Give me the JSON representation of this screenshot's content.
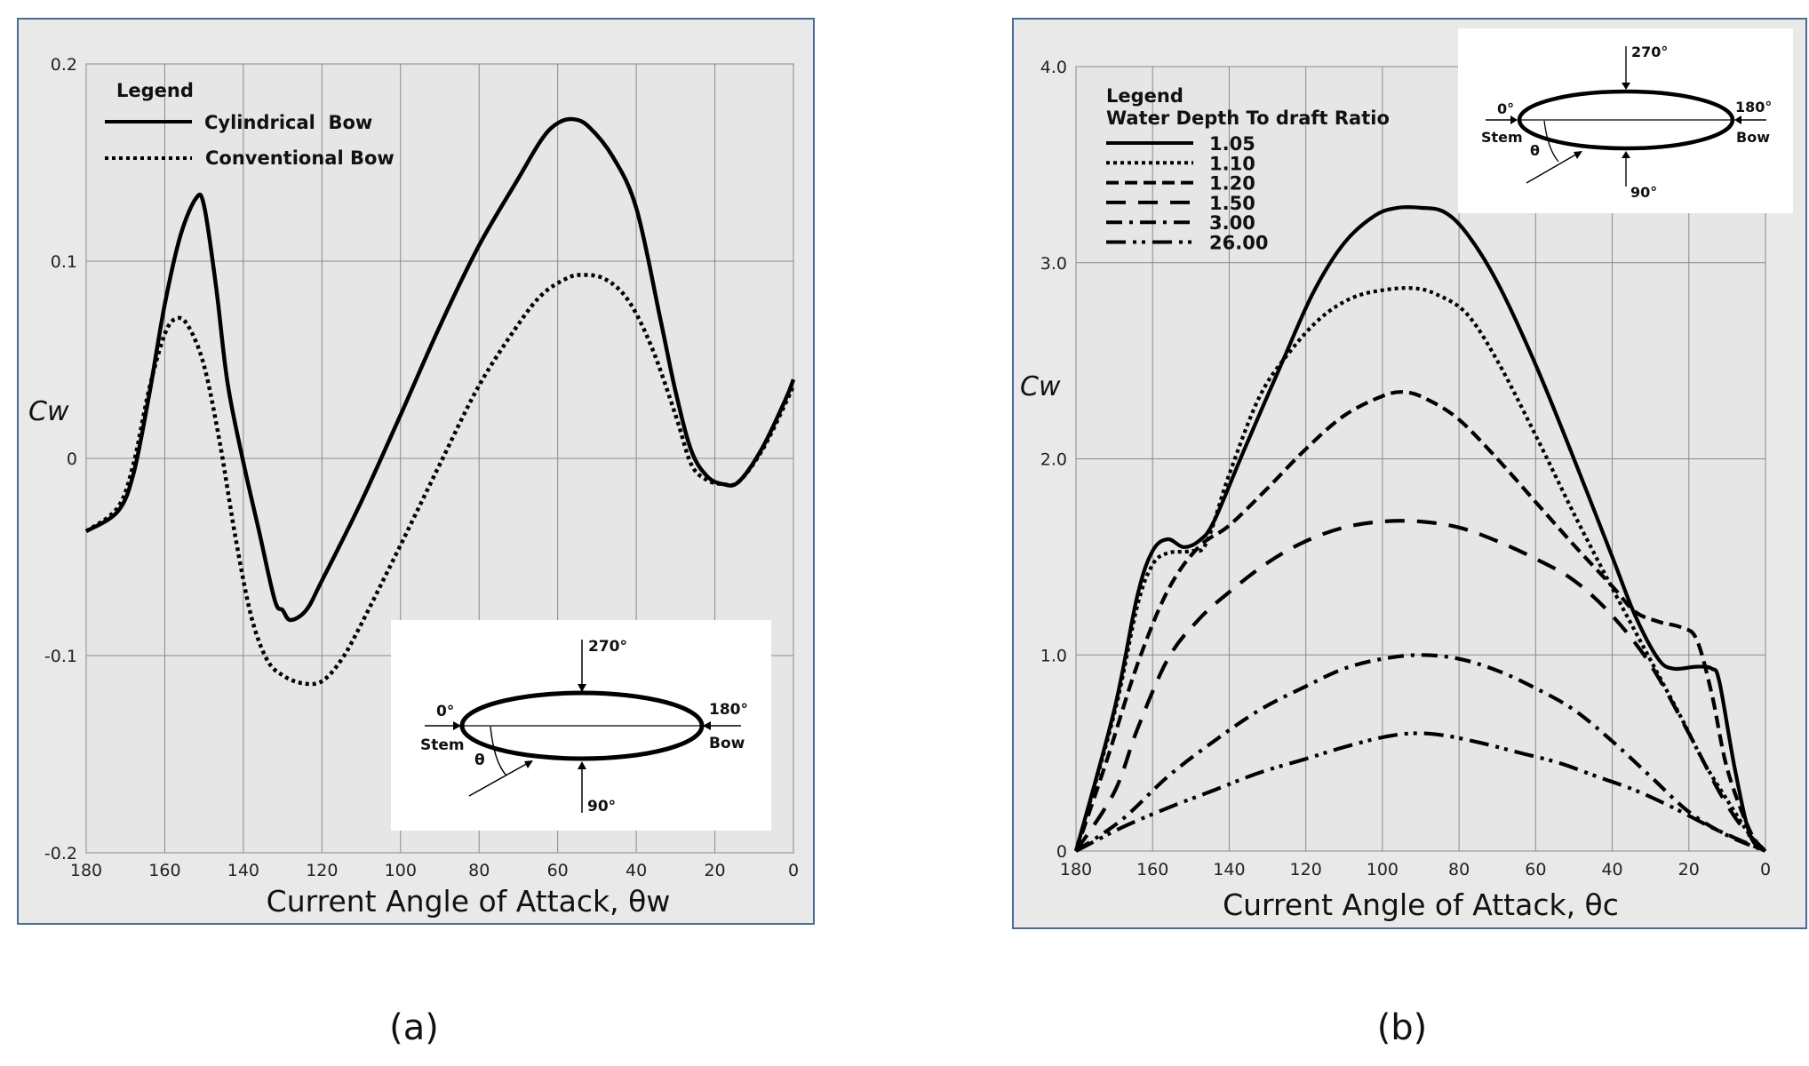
{
  "chart_data": [
    {
      "type": "line",
      "panel_label": "(a)",
      "title": "",
      "xlabel": "Current Angle of Attack, θw",
      "ylabel": "Cw",
      "xlim": [
        180,
        0
      ],
      "ylim": [
        -0.2,
        0.2
      ],
      "x_ticks": [
        "180",
        "160",
        "140",
        "120",
        "100",
        "80",
        "60",
        "40",
        "20",
        "0"
      ],
      "y_ticks": [
        "0.2",
        "0.1",
        "0",
        "-0.1",
        "-0.2"
      ],
      "legend_title": "Legend",
      "legend_position": "top-left",
      "series": [
        {
          "name": "Cylindrical  Bow",
          "style": "solid",
          "points": [
            [
              180,
              -0.037
            ],
            [
              172,
              -0.027
            ],
            [
              168,
              -0.008
            ],
            [
              164,
              0.032
            ],
            [
              160,
              0.078
            ],
            [
              156,
              0.113
            ],
            [
              152,
              0.132
            ],
            [
              150,
              0.128
            ],
            [
              147,
              0.088
            ],
            [
              144,
              0.038
            ],
            [
              140,
              -0.002
            ],
            [
              136,
              -0.037
            ],
            [
              132,
              -0.072
            ],
            [
              130,
              -0.077
            ],
            [
              128,
              -0.082
            ],
            [
              124,
              -0.077
            ],
            [
              120,
              -0.062
            ],
            [
              110,
              -0.022
            ],
            [
              100,
              0.022
            ],
            [
              90,
              0.067
            ],
            [
              80,
              0.108
            ],
            [
              70,
              0.142
            ],
            [
              64,
              0.162
            ],
            [
              60,
              0.17
            ],
            [
              56,
              0.172
            ],
            [
              52,
              0.168
            ],
            [
              46,
              0.153
            ],
            [
              40,
              0.127
            ],
            [
              34,
              0.072
            ],
            [
              30,
              0.034
            ],
            [
              26,
              0.004
            ],
            [
              22,
              -0.009
            ],
            [
              18,
              -0.013
            ],
            [
              14,
              -0.012
            ],
            [
              8,
              0.005
            ],
            [
              2,
              0.03
            ],
            [
              0,
              0.04
            ]
          ]
        },
        {
          "name": "Conventional Bow",
          "style": "dotted",
          "points": [
            [
              180,
              -0.037
            ],
            [
              172,
              -0.025
            ],
            [
              168,
              -0.003
            ],
            [
              164,
              0.035
            ],
            [
              160,
              0.063
            ],
            [
              157,
              0.071
            ],
            [
              154,
              0.067
            ],
            [
              150,
              0.047
            ],
            [
              146,
              0.008
            ],
            [
              142,
              -0.04
            ],
            [
              138,
              -0.08
            ],
            [
              134,
              -0.102
            ],
            [
              130,
              -0.11
            ],
            [
              125,
              -0.114
            ],
            [
              120,
              -0.113
            ],
            [
              115,
              -0.102
            ],
            [
              110,
              -0.084
            ],
            [
              100,
              -0.044
            ],
            [
              90,
              -0.003
            ],
            [
              80,
              0.037
            ],
            [
              70,
              0.068
            ],
            [
              64,
              0.083
            ],
            [
              58,
              0.091
            ],
            [
              54,
              0.093
            ],
            [
              48,
              0.091
            ],
            [
              42,
              0.08
            ],
            [
              36,
              0.056
            ],
            [
              30,
              0.022
            ],
            [
              26,
              -0.003
            ],
            [
              22,
              -0.011
            ],
            [
              18,
              -0.013
            ],
            [
              14,
              -0.012
            ],
            [
              8,
              0.004
            ],
            [
              2,
              0.028
            ],
            [
              0,
              0.037
            ]
          ]
        }
      ],
      "inset": {
        "top": "270°",
        "left": "0°",
        "left_sub": "Stem",
        "right": "180°",
        "right_sub": "Bow",
        "bottom": "90°",
        "angle": "θ"
      }
    },
    {
      "type": "line",
      "panel_label": "(b)",
      "title": "",
      "xlabel": "Current Angle of Attack, θc",
      "ylabel": "Cw",
      "xlim": [
        180,
        0
      ],
      "ylim": [
        0,
        4
      ],
      "x_ticks": [
        "180",
        "160",
        "140",
        "120",
        "100",
        "80",
        "60",
        "40",
        "20",
        "0"
      ],
      "y_ticks": [
        "4.0",
        "3.0",
        "2.0",
        "1.0",
        "0"
      ],
      "legend_title": "Legend",
      "legend_subtitle": "Water Depth To draft Ratio",
      "legend_position": "top-left",
      "series": [
        {
          "name": "1.05",
          "style": "solid",
          "points": [
            [
              180,
              0
            ],
            [
              170,
              0.72
            ],
            [
              164,
              1.3
            ],
            [
              160,
              1.53
            ],
            [
              156,
              1.59
            ],
            [
              152,
              1.55
            ],
            [
              148,
              1.58
            ],
            [
              144,
              1.68
            ],
            [
              136,
              2.05
            ],
            [
              126,
              2.5
            ],
            [
              118,
              2.85
            ],
            [
              110,
              3.1
            ],
            [
              102,
              3.24
            ],
            [
              96,
              3.28
            ],
            [
              90,
              3.28
            ],
            [
              84,
              3.26
            ],
            [
              78,
              3.15
            ],
            [
              70,
              2.9
            ],
            [
              60,
              2.48
            ],
            [
              50,
              2.0
            ],
            [
              40,
              1.5
            ],
            [
              34,
              1.2
            ],
            [
              28,
              0.98
            ],
            [
              24,
              0.93
            ],
            [
              18,
              0.94
            ],
            [
              14,
              0.93
            ],
            [
              12,
              0.86
            ],
            [
              8,
              0.42
            ],
            [
              4,
              0.08
            ],
            [
              0,
              0
            ]
          ]
        },
        {
          "name": "1.10",
          "style": "dotted",
          "points": [
            [
              180,
              0
            ],
            [
              170,
              0.7
            ],
            [
              164,
              1.25
            ],
            [
              160,
              1.46
            ],
            [
              156,
              1.52
            ],
            [
              150,
              1.53
            ],
            [
              146,
              1.57
            ],
            [
              140,
              1.92
            ],
            [
              132,
              2.32
            ],
            [
              124,
              2.55
            ],
            [
              116,
              2.72
            ],
            [
              108,
              2.82
            ],
            [
              100,
              2.86
            ],
            [
              92,
              2.87
            ],
            [
              86,
              2.84
            ],
            [
              78,
              2.74
            ],
            [
              70,
              2.5
            ],
            [
              60,
              2.12
            ],
            [
              50,
              1.72
            ],
            [
              40,
              1.34
            ],
            [
              34,
              1.12
            ],
            [
              28,
              0.9
            ],
            [
              22,
              0.68
            ],
            [
              16,
              0.45
            ],
            [
              10,
              0.26
            ],
            [
              4,
              0.08
            ],
            [
              0,
              0
            ]
          ]
        },
        {
          "name": "1.20",
          "style": "dashed",
          "points": [
            [
              180,
              0
            ],
            [
              172,
              0.46
            ],
            [
              164,
              0.95
            ],
            [
              156,
              1.33
            ],
            [
              148,
              1.55
            ],
            [
              140,
              1.66
            ],
            [
              130,
              1.85
            ],
            [
              120,
              2.05
            ],
            [
              110,
              2.22
            ],
            [
              100,
              2.32
            ],
            [
              94,
              2.34
            ],
            [
              88,
              2.3
            ],
            [
              80,
              2.2
            ],
            [
              70,
              2.0
            ],
            [
              60,
              1.78
            ],
            [
              50,
              1.56
            ],
            [
              40,
              1.35
            ],
            [
              34,
              1.22
            ],
            [
              28,
              1.17
            ],
            [
              22,
              1.14
            ],
            [
              18,
              1.08
            ],
            [
              14,
              0.8
            ],
            [
              10,
              0.42
            ],
            [
              4,
              0.1
            ],
            [
              0,
              0
            ]
          ]
        },
        {
          "name": "1.50",
          "style": "dashed-long",
          "points": [
            [
              180,
              0
            ],
            [
              170,
              0.3
            ],
            [
              164,
              0.62
            ],
            [
              156,
              0.98
            ],
            [
              148,
              1.18
            ],
            [
              140,
              1.32
            ],
            [
              130,
              1.47
            ],
            [
              120,
              1.58
            ],
            [
              110,
              1.65
            ],
            [
              100,
              1.68
            ],
            [
              90,
              1.68
            ],
            [
              80,
              1.65
            ],
            [
              70,
              1.58
            ],
            [
              60,
              1.49
            ],
            [
              50,
              1.38
            ],
            [
              40,
              1.2
            ],
            [
              30,
              0.95
            ],
            [
              20,
              0.6
            ],
            [
              12,
              0.3
            ],
            [
              6,
              0.12
            ],
            [
              0,
              0
            ]
          ]
        },
        {
          "name": "3.00",
          "style": "dashdot",
          "points": [
            [
              180,
              0
            ],
            [
              168,
              0.16
            ],
            [
              156,
              0.38
            ],
            [
              144,
              0.56
            ],
            [
              132,
              0.72
            ],
            [
              120,
              0.84
            ],
            [
              110,
              0.93
            ],
            [
              100,
              0.98
            ],
            [
              90,
              1.0
            ],
            [
              80,
              0.98
            ],
            [
              70,
              0.92
            ],
            [
              60,
              0.83
            ],
            [
              50,
              0.72
            ],
            [
              40,
              0.56
            ],
            [
              30,
              0.38
            ],
            [
              20,
              0.2
            ],
            [
              10,
              0.08
            ],
            [
              0,
              0
            ]
          ]
        },
        {
          "name": "26.00",
          "style": "dashdotdot",
          "points": [
            [
              180,
              0
            ],
            [
              168,
              0.12
            ],
            [
              156,
              0.22
            ],
            [
              144,
              0.31
            ],
            [
              132,
              0.4
            ],
            [
              120,
              0.47
            ],
            [
              110,
              0.53
            ],
            [
              100,
              0.58
            ],
            [
              92,
              0.6
            ],
            [
              84,
              0.59
            ],
            [
              74,
              0.55
            ],
            [
              64,
              0.5
            ],
            [
              54,
              0.45
            ],
            [
              44,
              0.38
            ],
            [
              34,
              0.31
            ],
            [
              24,
              0.22
            ],
            [
              14,
              0.12
            ],
            [
              6,
              0.05
            ],
            [
              0,
              0
            ]
          ]
        }
      ],
      "inset": {
        "top": "270°",
        "left": "0°",
        "left_sub": "Stem",
        "right": "180°",
        "right_sub": "Bow",
        "bottom": "90°",
        "angle": "θ"
      }
    }
  ]
}
